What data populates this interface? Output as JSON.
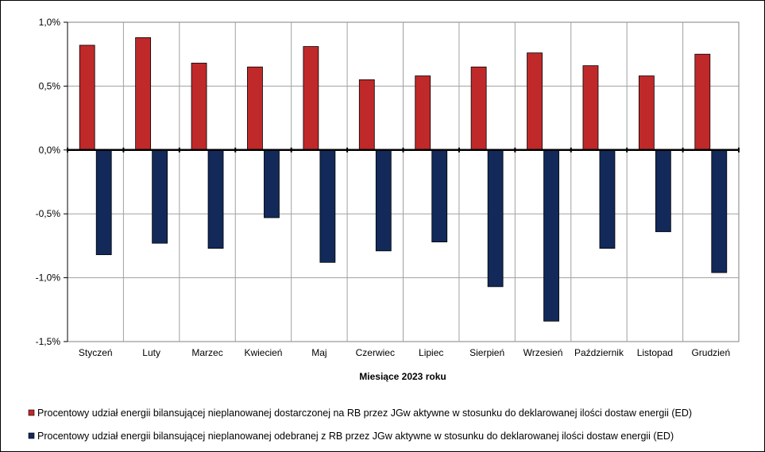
{
  "chart_data": {
    "type": "bar",
    "title": "",
    "xlabel": "Miesiące 2023  roku",
    "ylabel": "",
    "ylim": [
      -1.5,
      1.0
    ],
    "yticks": [
      1.0,
      0.5,
      0.0,
      -0.5,
      -1.0,
      -1.5
    ],
    "ytick_labels": [
      "1,0%",
      "0,5%",
      "0,0%",
      "-0,5%",
      "-1,0%",
      "-1,5%"
    ],
    "grid": true,
    "legend_position": "bottom",
    "categories": [
      "Styczeń",
      "Luty",
      "Marzec",
      "Kwiecień",
      "Maj",
      "Czerwiec",
      "Lipiec",
      "Sierpień",
      "Wrzesień",
      "Październik",
      "Listopad",
      "Grudzień"
    ],
    "series": [
      {
        "name": "Procentowy udział energii bilansującej nieplanowanej dostarczonej na RB przez JGw aktywne w stosunku do deklarowanej ilości dostaw energii (ED)",
        "color": "#C0292A",
        "values": [
          0.82,
          0.88,
          0.68,
          0.65,
          0.81,
          0.55,
          0.58,
          0.65,
          0.76,
          0.66,
          0.58,
          0.75
        ]
      },
      {
        "name": "Procentowy udział energii bilansującej nieplanowanej odebranej z RB przez JGw aktywne w stosunku do deklarowanej ilości dostaw energii (ED)",
        "color": "#12295A",
        "values": [
          -0.82,
          -0.73,
          -0.77,
          -0.53,
          -0.88,
          -0.79,
          -0.72,
          -1.07,
          -1.34,
          -0.77,
          -0.64,
          -0.96
        ]
      }
    ]
  }
}
